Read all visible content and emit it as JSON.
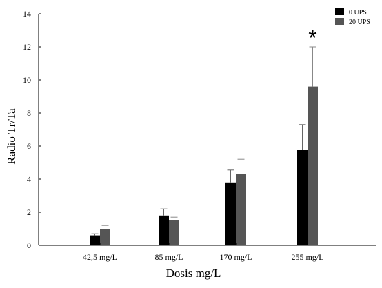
{
  "chart_data": {
    "type": "bar",
    "title": "",
    "xlabel": "Dosis mg/L",
    "ylabel": "Radio Tr/Ta",
    "ylim": [
      0,
      14
    ],
    "yticks": [
      0,
      2,
      4,
      6,
      8,
      10,
      12,
      14
    ],
    "grid": false,
    "legend_position": "top-right",
    "categories": [
      "42,5 mg/L",
      "85 mg/L",
      "170 mg/L",
      "255 mg/L"
    ],
    "series": [
      {
        "name": "0 UPS",
        "color": "#000000",
        "values": [
          0.6,
          1.8,
          3.8,
          5.75
        ],
        "errors": [
          0.1,
          0.4,
          0.75,
          1.55
        ]
      },
      {
        "name": "20 UPS",
        "color": "#555555",
        "values": [
          1.0,
          1.5,
          4.3,
          9.6
        ],
        "errors": [
          0.2,
          0.2,
          0.9,
          2.4
        ]
      }
    ],
    "annotations": [
      {
        "text": "*",
        "category": "255 mg/L",
        "series": "20 UPS"
      }
    ]
  }
}
